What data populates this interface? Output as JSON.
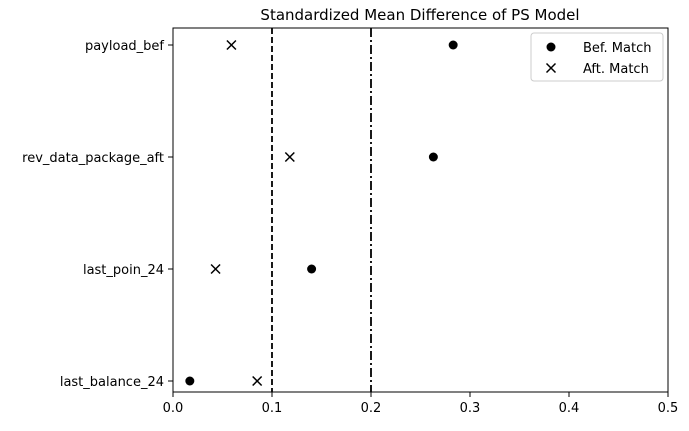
{
  "chart_data": {
    "type": "scatter",
    "title": "Standardized Mean Difference of PS Model",
    "xlabel": "",
    "ylabel": "",
    "xlim": [
      0.0,
      0.5
    ],
    "xticks": [
      "0.0",
      "0.1",
      "0.2",
      "0.3",
      "0.4",
      "0.5"
    ],
    "xtick_values": [
      0.0,
      0.1,
      0.2,
      0.3,
      0.4,
      0.5
    ],
    "categories": [
      "payload_bef",
      "rev_data_package_aft",
      "last_poin_24",
      "last_balance_24"
    ],
    "series": [
      {
        "name": "Bef. Match",
        "marker": "circle",
        "color": "#000000",
        "values": [
          0.283,
          0.263,
          0.14,
          0.017
        ]
      },
      {
        "name": "Aft. Match",
        "marker": "x",
        "color": "#000000",
        "values": [
          0.059,
          0.118,
          0.043,
          0.085
        ]
      }
    ],
    "reference_lines": [
      {
        "x": 0.1,
        "style": "dashed"
      },
      {
        "x": 0.2,
        "style": "dashdot"
      }
    ],
    "grid": false,
    "legend_position": "top-right"
  }
}
